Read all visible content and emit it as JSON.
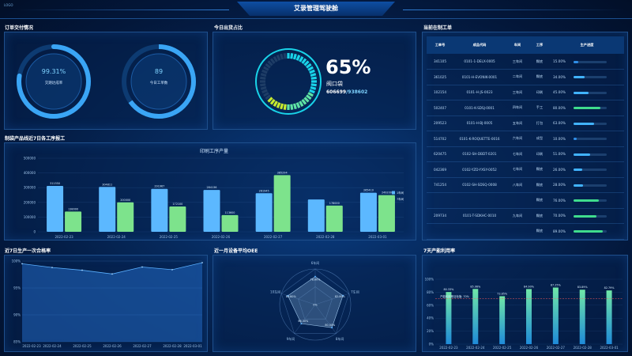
{
  "header": {
    "title": "艾录管理驾驶舱",
    "logo": "LOGO"
  },
  "order_panel": {
    "title": "订单交付情况",
    "delivery_rate": "99.31%",
    "delivery_label": "交期达成率",
    "delivery_fraction": 0.9931,
    "today_orders": "89",
    "today_label": "今日工单数"
  },
  "shipment_panel": {
    "title": "今日出货占比",
    "percent": "65%",
    "percent_value": 0.65,
    "product": "阀口袋",
    "done": "606699",
    "separator": "/",
    "total": "938602"
  },
  "workorders": {
    "title": "当前在制工单",
    "headers": [
      "工单号",
      "成品代码",
      "车间",
      "工序",
      "生产进度"
    ],
    "rows": [
      {
        "no": "341105",
        "code": "0101-1-DELX-0005",
        "shop": "三车间",
        "proc": "糊底",
        "pct": "15.00%",
        "val": 0.15,
        "color": "#2f8ee8"
      },
      {
        "no": "361025",
        "code": "0101-H-EVONIK-0001",
        "shop": "二车间",
        "proc": "糊底",
        "pct": "34.00%",
        "val": 0.34,
        "color": "#41b3ff"
      },
      {
        "no": "102154",
        "code": "0101-H-JS-0023",
        "shop": "三车间",
        "proc": "印刷",
        "pct": "45.00%",
        "val": 0.45,
        "color": "#41b3ff"
      },
      {
        "no": "502407",
        "code": "0101-K-SDSJ-0001",
        "shop": "四车间",
        "proc": "手工",
        "pct": "80.00%",
        "val": 0.8,
        "color": "#3fdc8d"
      },
      {
        "no": "209523",
        "code": "0101-H-BJ-0005",
        "shop": "五车间",
        "proc": "打包",
        "pct": "63.00%",
        "val": 0.63,
        "color": "#41b3ff"
      },
      {
        "no": "514702",
        "code": "0101-K-ROQUETTE-0016",
        "shop": "六车间",
        "proc": "成型",
        "pct": "10.00%",
        "val": 0.1,
        "color": "#2f8ee8"
      },
      {
        "no": "620475",
        "code": "0102-SH-DBDT-0201",
        "shop": "七车间",
        "proc": "印刷",
        "pct": "51.00%",
        "val": 0.51,
        "color": "#41b3ff"
      },
      {
        "no": "042369",
        "code": "0102-YZD-YXSY-0052",
        "shop": "七车间",
        "proc": "糊底",
        "pct": "26.00%",
        "val": 0.26,
        "color": "#41b3ff"
      },
      {
        "no": "741254",
        "code": "0102-SH-SDSQ-0008",
        "shop": "八车间",
        "proc": "糊底",
        "pct": "28.00%",
        "val": 0.28,
        "color": "#41b3ff"
      },
      {
        "no": "",
        "code": "",
        "shop": "",
        "proc": "糊底",
        "pct": "76.00%",
        "val": 0.76,
        "color": "#3fdc8d"
      },
      {
        "no": "209734",
        "code": "0101-T-SDKHC-0010",
        "shop": "九车间",
        "proc": "糊底",
        "pct": "70.00%",
        "val": 0.7,
        "color": "#3fdc8d"
      },
      {
        "no": "",
        "code": "",
        "shop": "",
        "proc": "糊底",
        "pct": "89.00%",
        "val": 0.89,
        "color": "#3fdc8d"
      },
      {
        "no": "010701",
        "code": "0101-H-DG-0037",
        "shop": "九车间",
        "proc": "成型",
        "pct": "",
        "val": 0,
        "color": "#3fdc8d"
      },
      {
        "no": "",
        "code": "",
        "shop": "",
        "proc": "糊底",
        "pct": "85.00%",
        "val": 0.85,
        "color": "#3fdc8d"
      }
    ]
  },
  "output_panel": {
    "title": "制袋产品线近7日各工序报工",
    "chart_data": {
      "type": "bar",
      "title": "印刷工序产量",
      "categories": [
        "2022-02-23",
        "2022-02-24",
        "2022-02-25",
        "2022-02-26",
        "2022-02-27",
        "2022-02-28",
        "2022-03-01"
      ],
      "ylim": [
        0,
        500000
      ],
      "yticks": [
        "0",
        "100000",
        "200000",
        "300000",
        "400000",
        "500000"
      ],
      "legend": "top-right",
      "series": [
        {
          "name": "1车间",
          "color": "#5cb8ff",
          "values": [
            311550,
            304811,
            291967,
            284136,
            261945,
            220000,
            265410
          ]
        },
        {
          "name": "7车间",
          "color": "#7de38c",
          "values": [
            138000,
            200000,
            172100,
            113600,
            385294,
            178000,
            249200
          ]
        }
      ],
      "labels": [
        [
          "311550",
          "304811",
          "291967",
          "284136",
          "261945",
          "",
          "265410"
        ],
        [
          "138000",
          "200000",
          "172100",
          "113600",
          "385294",
          "178000",
          "249200"
        ]
      ]
    }
  },
  "pass_panel": {
    "title": "近7日生产一次合格率",
    "chart_data": {
      "type": "area",
      "categories": [
        "2022-02-23",
        "2022-02-24",
        "2022-02-25",
        "2022-02-26",
        "2022-02-27",
        "2022-02-28",
        "2022-03-01"
      ],
      "ylim": [
        85,
        100
      ],
      "yticks": [
        "100%",
        "95%",
        "90%",
        "85%"
      ],
      "values": [
        99.5,
        98.8,
        98.3,
        97.6,
        98.9,
        98.4,
        99.7
      ]
    }
  },
  "oee_panel": {
    "title": "近一月设备平均OEE",
    "chart_data": {
      "type": "radar",
      "axes": [
        "6车间",
        "7车间",
        "8车间",
        "9车间",
        "10车间"
      ],
      "values": [
        0.786,
        0.82,
        0.8,
        0.663,
        0.808
      ],
      "value_labels": [
        "78.60%",
        "82.00%",
        "80.00%",
        "66.30%",
        "80.80%"
      ],
      "center_label": "0%"
    }
  },
  "capacity_panel": {
    "title": "7天产能利用率",
    "chart_data": {
      "type": "bar",
      "categories": [
        "2022-02-23",
        "2022-02-24",
        "2022-02-25",
        "2022-02-26",
        "2022-02-27",
        "2022-02-28",
        "2022-03-01"
      ],
      "ylim": [
        0,
        100
      ],
      "yticks": [
        "100%",
        "80%",
        "60%",
        "40%",
        "20%",
        "0%"
      ],
      "values": [
        80.33,
        85.06,
        73.85,
        84.9,
        87.25,
        83.89,
        82.79
      ],
      "labels": [
        "80.33%",
        "85.06%",
        "73.85%",
        "84.90%",
        "87.25%",
        "83.89%",
        "82.79%"
      ],
      "target": 70,
      "target_label": "产能利用率目标值: 70%"
    }
  }
}
